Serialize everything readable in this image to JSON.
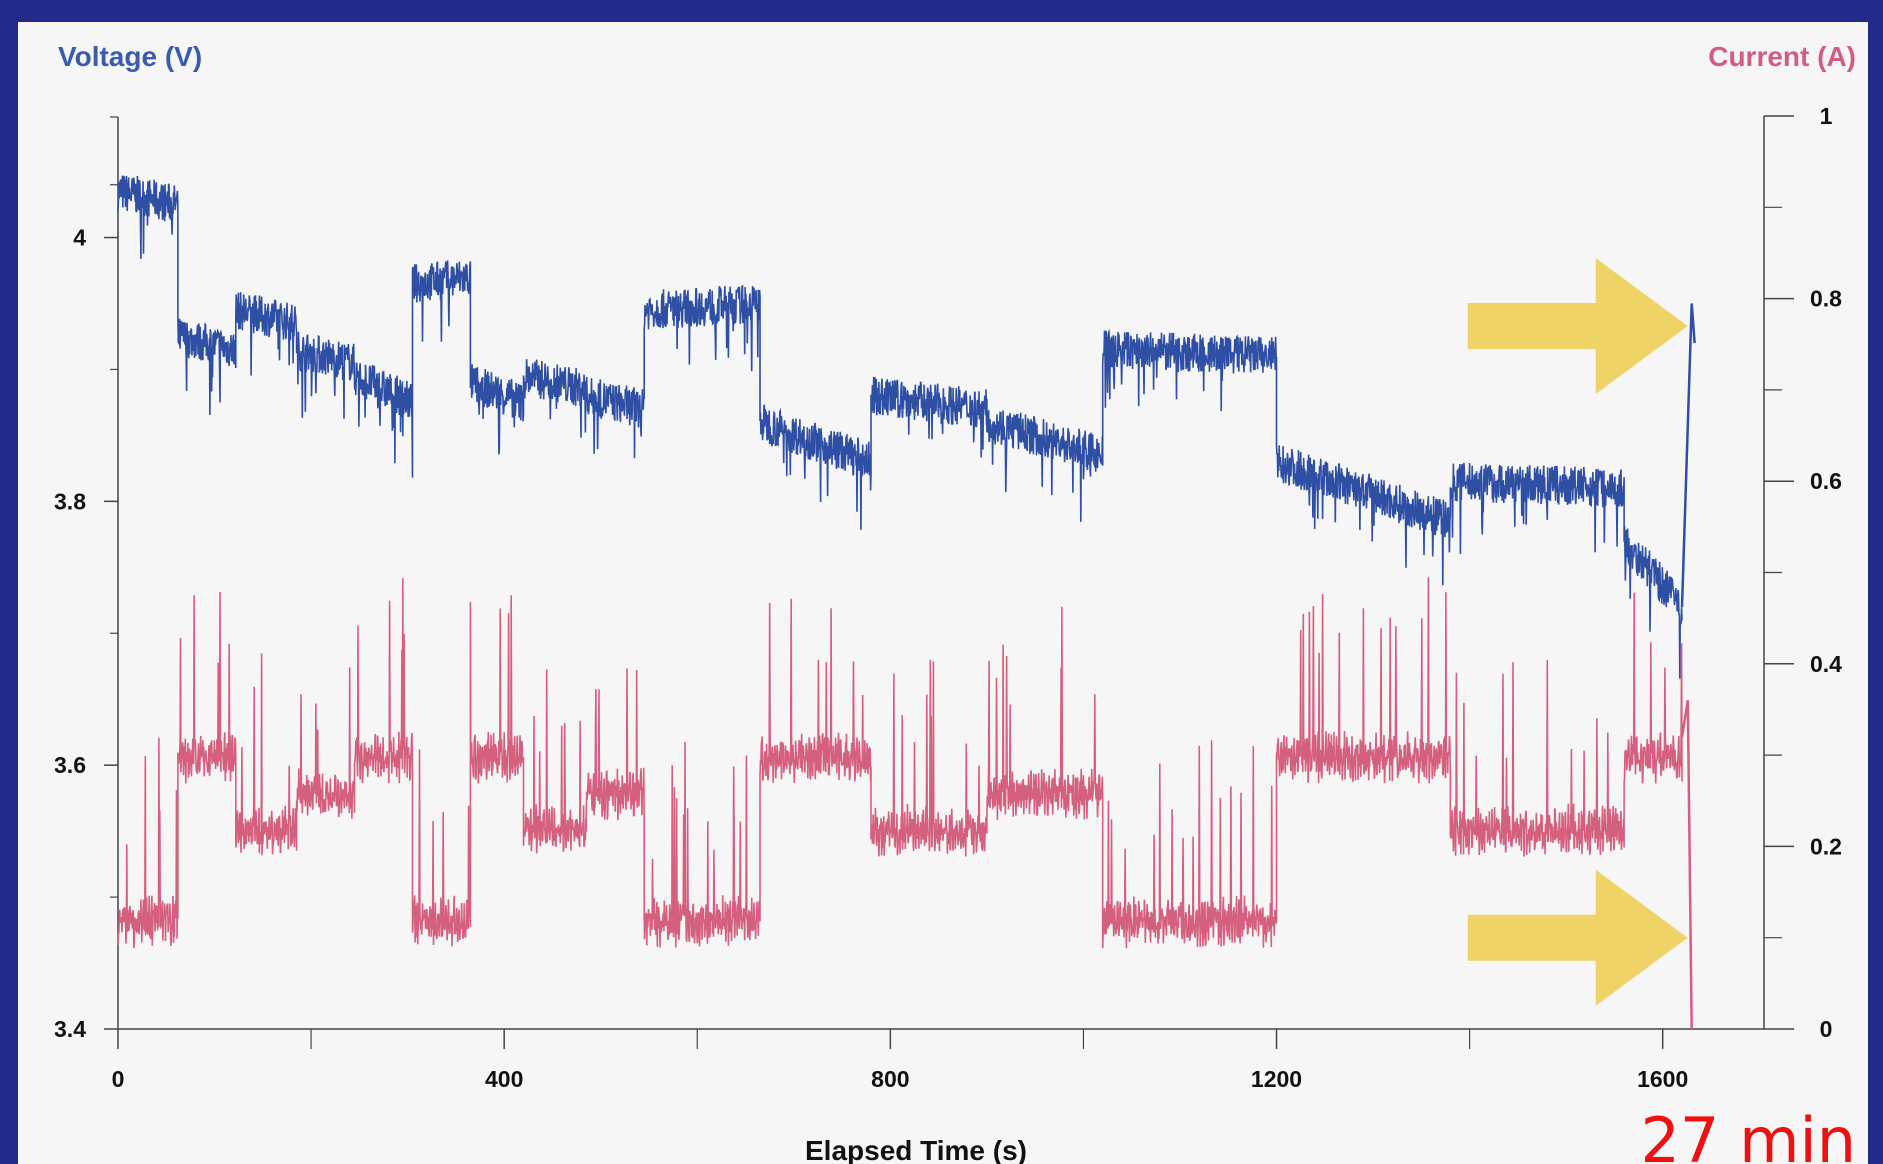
{
  "page": {
    "background": "#232a8a",
    "panel_background": "#f6f6f6"
  },
  "chart_data": {
    "type": "line",
    "xlabel": "Elapsed Time (s)",
    "ylabel_left": "Voltage (V)",
    "ylabel_right": "Current (A)",
    "xlim": [
      0,
      1640
    ],
    "ylim_left": [
      3.4,
      4.08
    ],
    "ylim_right": [
      0,
      1
    ],
    "x_ticks": [
      0,
      400,
      800,
      1200,
      1600
    ],
    "y_ticks_left": [
      3.4,
      3.6,
      3.8,
      4
    ],
    "y_ticks_right": [
      0,
      0.2,
      0.4,
      0.6,
      0.8,
      1
    ],
    "y_tick_labels_left": [
      "3.4",
      "3.6",
      "3.8",
      "4"
    ],
    "y_tick_labels_right": [
      "0",
      "0.2",
      "0.4",
      "0.6",
      "0.8",
      "1"
    ],
    "x_tick_labels": [
      "0",
      "400",
      "800",
      "1200",
      "1600"
    ],
    "grid": false,
    "colors": {
      "voltage": "#2e4fa3",
      "current": "#d4607e",
      "arrow": "#efcf5a",
      "annotation": "#ee1111",
      "axis_title_left": "#3a5cab",
      "axis_title_right": "#d45c80"
    },
    "series": [
      {
        "axis": "left",
        "units": "V",
        "segments": [
          {
            "x": [
              0,
              62
            ],
            "y": [
              4.035,
              4.025
            ]
          },
          {
            "x": [
              62,
              122
            ],
            "y": [
              3.925,
              3.915
            ]
          },
          {
            "x": [
              122,
              185
            ],
            "y": [
              3.945,
              3.935
            ]
          },
          {
            "x": [
              185,
              245
            ],
            "y": [
              3.915,
              3.905
            ]
          },
          {
            "x": [
              245,
              305
            ],
            "y": [
              3.895,
              3.875
            ]
          },
          {
            "x": [
              305,
              365
            ],
            "y": [
              3.965,
              3.97
            ]
          },
          {
            "x": [
              365,
              420
            ],
            "y": [
              3.89,
              3.875
            ]
          },
          {
            "x": [
              420,
              485
            ],
            "y": [
              3.895,
              3.885
            ]
          },
          {
            "x": [
              485,
              545
            ],
            "y": [
              3.88,
              3.87
            ]
          },
          {
            "x": [
              545,
              665
            ],
            "y": [
              3.945,
              3.95
            ]
          },
          {
            "x": [
              665,
              780
            ],
            "y": [
              3.86,
              3.83
            ]
          },
          {
            "x": [
              780,
              900
            ],
            "y": [
              3.88,
              3.87
            ]
          },
          {
            "x": [
              900,
              1020
            ],
            "y": [
              3.86,
              3.835
            ]
          },
          {
            "x": [
              1020,
              1200
            ],
            "y": [
              3.915,
              3.91
            ]
          },
          {
            "x": [
              1200,
              1380
            ],
            "y": [
              3.83,
              3.785
            ]
          },
          {
            "x": [
              1380,
              1560
            ],
            "y": [
              3.815,
              3.81
            ]
          },
          {
            "x": [
              1560,
              1620
            ],
            "y": [
              3.77,
              3.72
            ]
          }
        ]
      },
      {
        "axis": "right",
        "units": "A",
        "segments": [
          {
            "x": [
              0,
              62
            ],
            "y": [
              0.12,
              0.12
            ]
          },
          {
            "x": [
              62,
              122
            ],
            "y": [
              0.3,
              0.3
            ]
          },
          {
            "x": [
              122,
              185
            ],
            "y": [
              0.22,
              0.22
            ]
          },
          {
            "x": [
              185,
              245
            ],
            "y": [
              0.26,
              0.26
            ]
          },
          {
            "x": [
              245,
              305
            ],
            "y": [
              0.3,
              0.3
            ]
          },
          {
            "x": [
              305,
              365
            ],
            "y": [
              0.12,
              0.12
            ]
          },
          {
            "x": [
              365,
              420
            ],
            "y": [
              0.3,
              0.3
            ]
          },
          {
            "x": [
              420,
              485
            ],
            "y": [
              0.22,
              0.22
            ]
          },
          {
            "x": [
              485,
              545
            ],
            "y": [
              0.26,
              0.26
            ]
          },
          {
            "x": [
              545,
              665
            ],
            "y": [
              0.12,
              0.12
            ]
          },
          {
            "x": [
              665,
              780
            ],
            "y": [
              0.3,
              0.3
            ]
          },
          {
            "x": [
              780,
              900
            ],
            "y": [
              0.22,
              0.22
            ]
          },
          {
            "x": [
              900,
              1020
            ],
            "y": [
              0.26,
              0.26
            ]
          },
          {
            "x": [
              1020,
              1200
            ],
            "y": [
              0.12,
              0.12
            ]
          },
          {
            "x": [
              1200,
              1380
            ],
            "y": [
              0.3,
              0.3
            ]
          },
          {
            "x": [
              1380,
              1560
            ],
            "y": [
              0.22,
              0.22
            ]
          },
          {
            "x": [
              1560,
              1620
            ],
            "y": [
              0.3,
              0.3
            ]
          }
        ]
      }
    ],
    "annotations": {
      "time_label": "27 min",
      "arrows": [
        {
          "points_to": "voltage recovery",
          "x": 1630,
          "y_right": 0.77
        },
        {
          "points_to": "current drop",
          "x": 1630,
          "y_right": 0.1
        }
      ]
    }
  }
}
